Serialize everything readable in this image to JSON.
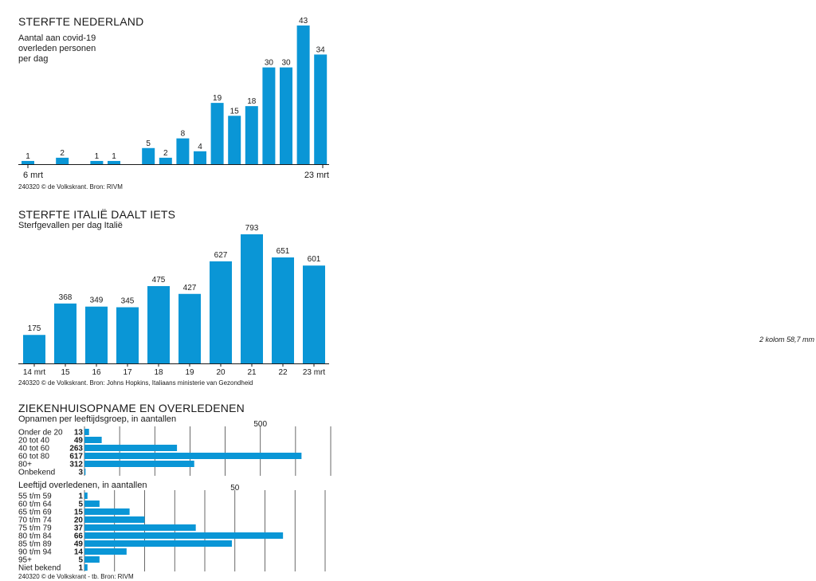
{
  "side_note": "2 kolom 58,7 mm",
  "charts": {
    "nl": {
      "title": "STERFTE NEDERLAND",
      "subtitle": "Aantal aan covid-19\noverleden personen\nper dag",
      "source": "240320 © de Volkskrant. Bron: RIVM"
    },
    "it": {
      "title": "STERFTE ITALIË DAALT IETS",
      "subtitle": "Sterfgevallen per dag Italië",
      "source": "240320 © de Volkskrant. Bron: Johns Hopkins, Italiaans ministerie van Gezondheid"
    },
    "zh": {
      "title": "ZIEKENHUISOPNAME EN OVERLEDENEN",
      "subtitle1": "Opnamen per leeftijdsgroep, in aantallen",
      "subtitle2": "Leeftijd overledenen, in aantallen",
      "source": "240320 © de Volkskrant - tb. Bron: RIVM"
    }
  },
  "chart_data": [
    {
      "type": "bar",
      "title": "STERFTE NEDERLAND",
      "subtitle": "Aantal aan covid-19 overleden personen per dag",
      "x_start_label": "6 mrt",
      "x_end_label": "23 mrt",
      "values": [
        1,
        0,
        2,
        0,
        1,
        1,
        0,
        5,
        2,
        8,
        4,
        19,
        15,
        18,
        30,
        30,
        43,
        34
      ],
      "data_labels": [
        "1",
        "",
        "2",
        "",
        "1",
        "1",
        "",
        "5",
        "2",
        "8",
        "4",
        "19",
        "15",
        "18",
        "30",
        "30",
        "43",
        "34"
      ],
      "color": "#0a96d6"
    },
    {
      "type": "bar",
      "title": "STERFTE ITALIË DAALT IETS",
      "subtitle": "Sterfgevallen per dag Italië",
      "categories": [
        "14 mrt",
        "15",
        "16",
        "17",
        "18",
        "19",
        "20",
        "21",
        "22",
        "23 mrt"
      ],
      "values": [
        175,
        368,
        349,
        345,
        475,
        427,
        627,
        793,
        651,
        601
      ],
      "color": "#0a96d6"
    },
    {
      "type": "bar",
      "orientation": "horizontal",
      "title": "Opnamen per leeftijdsgroep, in aantallen",
      "categories": [
        "Onder de 20",
        "20 tot 40",
        "40 tot 60",
        "60 tot 80",
        "80+",
        "Onbekend"
      ],
      "values": [
        13,
        49,
        263,
        617,
        312,
        3
      ],
      "xlim": [
        0,
        700
      ],
      "grid_step": 100,
      "tick_label": "500",
      "tick_value": 500,
      "color": "#0a96d6"
    },
    {
      "type": "bar",
      "orientation": "horizontal",
      "title": "Leeftijd overledenen, in aantallen",
      "categories": [
        "55 t/m 59",
        "60 t/m 64",
        "65 t/m 69",
        "70 t/m 74",
        "75 t/m 79",
        "80 t/m 84",
        "85 t/m 89",
        "90 t/m 94",
        "95+",
        "Niet bekend"
      ],
      "values": [
        1,
        5,
        15,
        20,
        37,
        66,
        49,
        14,
        5,
        1
      ],
      "xlim": [
        0,
        80
      ],
      "grid_step": 10,
      "tick_label": "50",
      "tick_value": 50,
      "color": "#0a96d6"
    }
  ]
}
